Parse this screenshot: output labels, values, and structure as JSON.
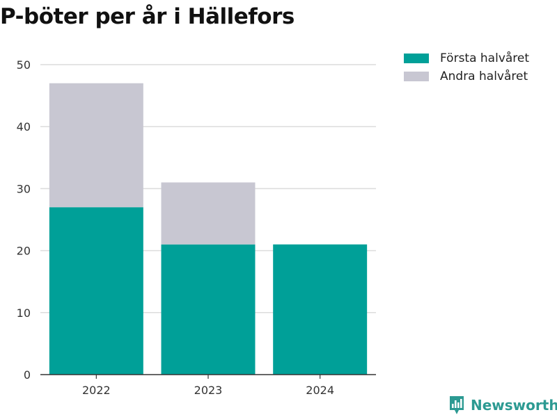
{
  "chart_data": {
    "type": "bar",
    "stacked": true,
    "title": "P-böter per år i Hällefors",
    "categories": [
      "2022",
      "2023",
      "2024"
    ],
    "series": [
      {
        "name": "Första halvåret",
        "color": "#00a098",
        "values": [
          27,
          21,
          21
        ]
      },
      {
        "name": "Andra halvåret",
        "color": "#c8c7d2",
        "values": [
          20,
          10,
          0
        ]
      }
    ],
    "ylim": [
      0,
      50
    ],
    "yticks": [
      0,
      10,
      20,
      30,
      40,
      50
    ],
    "grid": true,
    "legend_position": "top-right"
  },
  "brand": {
    "name": "Newsworthy",
    "icon": "bar-chart-badge-icon",
    "color": "#2c9a92"
  }
}
